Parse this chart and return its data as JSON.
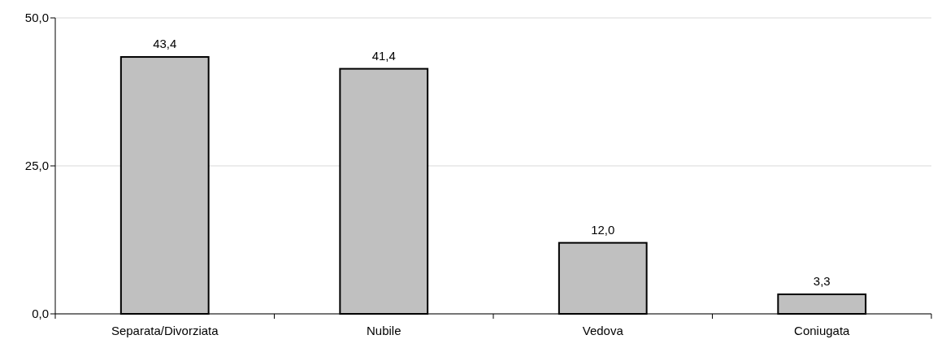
{
  "chart_data": {
    "type": "bar",
    "categories": [
      "Separata/Divorziata",
      "Nubile",
      "Vedova",
      "Coniugata"
    ],
    "values": [
      43.4,
      41.4,
      12.0,
      3.3
    ],
    "value_labels": [
      "43,4",
      "41,4",
      "12,0",
      "3,3"
    ],
    "color": "#c0c0c0",
    "ylim": [
      0,
      50
    ],
    "yticks": [
      {
        "value": 0,
        "label": "0,0"
      },
      {
        "value": 25,
        "label": "25,0"
      },
      {
        "value": 50,
        "label": "50,0"
      }
    ],
    "grid": "y"
  }
}
